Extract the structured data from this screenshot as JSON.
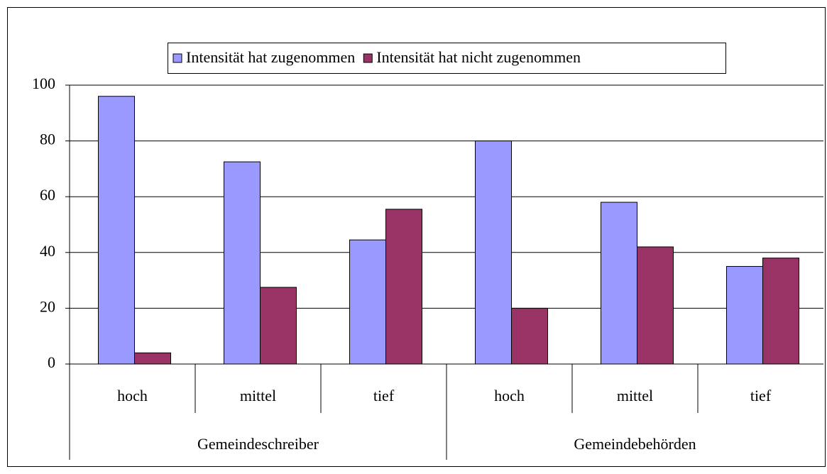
{
  "chart_data": {
    "type": "bar",
    "groups": [
      {
        "label": "Gemeindeschreiber",
        "categories": [
          "hoch",
          "mittel",
          "tief"
        ]
      },
      {
        "label": "Gemeindebehörden",
        "categories": [
          "hoch",
          "mittel",
          "tief"
        ]
      }
    ],
    "series": [
      {
        "name": "Intensität hat zugenommen",
        "color": "#9999ff",
        "values": [
          96,
          72.5,
          44.5,
          80,
          58,
          35
        ]
      },
      {
        "name": "Intensität hat nicht zugenommen",
        "color": "#993366",
        "values": [
          4,
          27.5,
          55.5,
          20,
          42,
          38
        ]
      }
    ],
    "ylim": [
      0,
      100
    ],
    "yticks": [
      0,
      20,
      40,
      60,
      80,
      100
    ],
    "grid": true,
    "legend": "top"
  }
}
